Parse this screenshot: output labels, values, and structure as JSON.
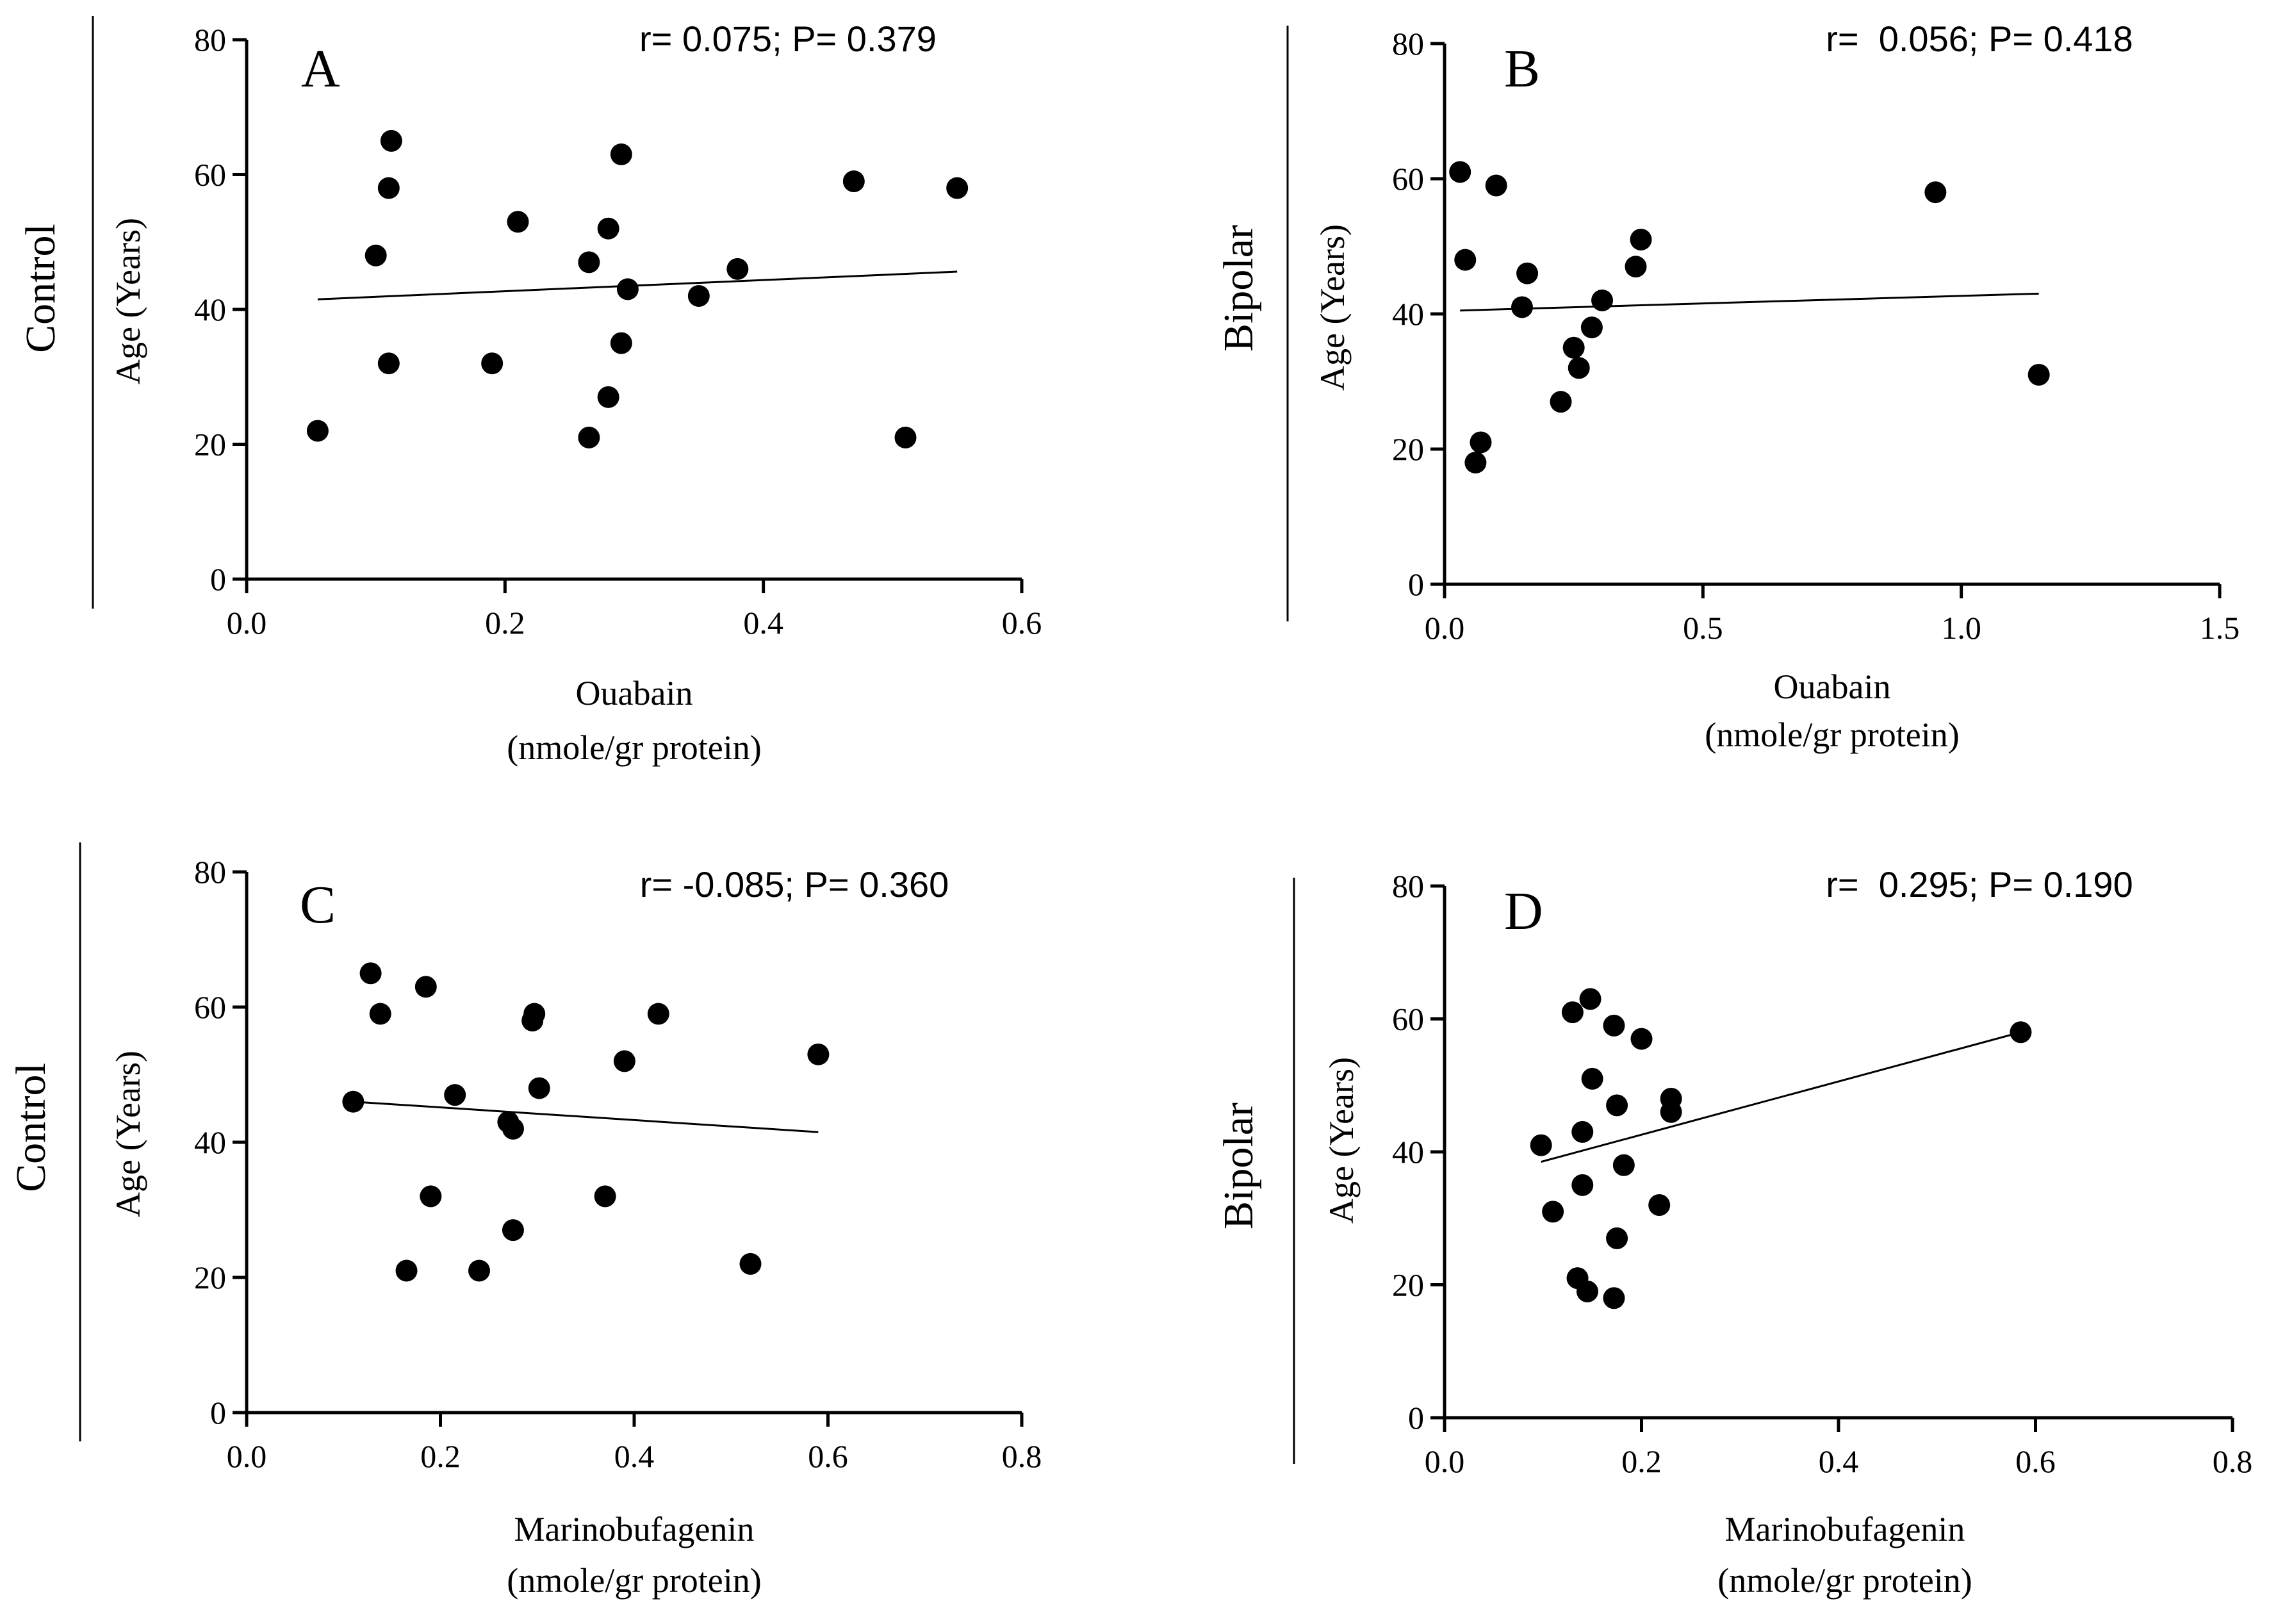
{
  "chart_data": [
    {
      "type": "scatter",
      "panel": "A",
      "group": "Control",
      "stat": "r= 0.075; P= 0.379",
      "xlabel": [
        "Ouabain",
        "(nmole/gr protein)"
      ],
      "ylabel": "Age (Years)",
      "xlim": [
        0,
        0.6
      ],
      "ylim": [
        0,
        80
      ],
      "xticks": [
        "0.0",
        "0.2",
        "0.4",
        "0.6"
      ],
      "xtick_values": [
        0,
        0.2,
        0.4,
        0.6
      ],
      "yticks": [
        "0",
        "20",
        "40",
        "60",
        "80"
      ],
      "ytick_values": [
        0,
        20,
        40,
        60,
        80
      ],
      "points": [
        [
          0.055,
          22
        ],
        [
          0.1,
          48
        ],
        [
          0.11,
          58
        ],
        [
          0.112,
          65
        ],
        [
          0.11,
          32
        ],
        [
          0.19,
          32
        ],
        [
          0.21,
          53
        ],
        [
          0.265,
          47
        ],
        [
          0.265,
          21
        ],
        [
          0.28,
          52
        ],
        [
          0.28,
          27
        ],
        [
          0.29,
          63
        ],
        [
          0.295,
          43
        ],
        [
          0.29,
          35
        ],
        [
          0.35,
          42
        ],
        [
          0.38,
          46
        ],
        [
          0.47,
          59
        ],
        [
          0.51,
          21
        ],
        [
          0.55,
          58
        ]
      ],
      "fit": [
        [
          0.055,
          41.5
        ],
        [
          0.55,
          45.6
        ]
      ]
    },
    {
      "type": "scatter",
      "panel": "B",
      "group": "Bipolar",
      "stat": "r=  0.056; P= 0.418",
      "xlabel": [
        "Ouabain",
        "(nmole/gr protein)"
      ],
      "ylabel": "Age (Years)",
      "xlim": [
        0,
        1.5
      ],
      "ylim": [
        0,
        80
      ],
      "xticks": [
        "0.0",
        "0.5",
        "1.0",
        "1.5"
      ],
      "xtick_values": [
        0,
        0.5,
        1.0,
        1.5
      ],
      "yticks": [
        "0",
        "20",
        "40",
        "60",
        "80"
      ],
      "ytick_values": [
        0,
        20,
        40,
        60,
        80
      ],
      "points": [
        [
          0.03,
          61
        ],
        [
          0.04,
          48
        ],
        [
          0.06,
          18
        ],
        [
          0.07,
          21
        ],
        [
          0.1,
          59
        ],
        [
          0.15,
          41
        ],
        [
          0.16,
          46
        ],
        [
          0.225,
          27
        ],
        [
          0.25,
          35
        ],
        [
          0.26,
          32
        ],
        [
          0.285,
          38
        ],
        [
          0.305,
          42
        ],
        [
          0.37,
          47
        ],
        [
          0.38,
          51
        ],
        [
          0.95,
          58
        ],
        [
          1.15,
          31
        ]
      ],
      "fit": [
        [
          0.03,
          40.5
        ],
        [
          1.15,
          43
        ]
      ]
    },
    {
      "type": "scatter",
      "panel": "C",
      "group": "Control",
      "stat": "r= -0.085; P= 0.360",
      "xlabel": [
        "Marinobufagenin",
        "(nmole/gr protein)"
      ],
      "ylabel": "Age (Years)",
      "xlim": [
        0,
        0.8
      ],
      "ylim": [
        0,
        80
      ],
      "xticks": [
        "0.0",
        "0.2",
        "0.4",
        "0.6",
        "0.8"
      ],
      "xtick_values": [
        0,
        0.2,
        0.4,
        0.6,
        0.8
      ],
      "yticks": [
        "0",
        "20",
        "40",
        "60",
        "80"
      ],
      "ytick_values": [
        0,
        20,
        40,
        60,
        80
      ],
      "points": [
        [
          0.11,
          46
        ],
        [
          0.128,
          65
        ],
        [
          0.138,
          59
        ],
        [
          0.165,
          21
        ],
        [
          0.185,
          63
        ],
        [
          0.19,
          32
        ],
        [
          0.215,
          47
        ],
        [
          0.24,
          21
        ],
        [
          0.27,
          43
        ],
        [
          0.275,
          42
        ],
        [
          0.275,
          27
        ],
        [
          0.295,
          58
        ],
        [
          0.297,
          59
        ],
        [
          0.302,
          48
        ],
        [
          0.37,
          32
        ],
        [
          0.39,
          52
        ],
        [
          0.425,
          59
        ],
        [
          0.52,
          22
        ],
        [
          0.59,
          53
        ]
      ],
      "fit": [
        [
          0.11,
          46
        ],
        [
          0.59,
          41.5
        ]
      ]
    },
    {
      "type": "scatter",
      "panel": "D",
      "group": "Bipolar",
      "stat": "r=  0.295; P= 0.190",
      "xlabel": [
        "Marinobufagenin",
        "(nmole/gr protein)"
      ],
      "ylabel": "Age (Years)",
      "xlim": [
        0,
        0.8
      ],
      "ylim": [
        0,
        80
      ],
      "xticks": [
        "0.0",
        "0.2",
        "0.4",
        "0.6",
        "0.8"
      ],
      "xtick_values": [
        0,
        0.2,
        0.4,
        0.6,
        0.8
      ],
      "yticks": [
        "0",
        "20",
        "40",
        "60",
        "80"
      ],
      "ytick_values": [
        0,
        20,
        40,
        60,
        80
      ],
      "points": [
        [
          0.098,
          41
        ],
        [
          0.11,
          31
        ],
        [
          0.13,
          61
        ],
        [
          0.135,
          21
        ],
        [
          0.14,
          43
        ],
        [
          0.14,
          35
        ],
        [
          0.145,
          19
        ],
        [
          0.148,
          63
        ],
        [
          0.15,
          51
        ],
        [
          0.172,
          59
        ],
        [
          0.175,
          47
        ],
        [
          0.175,
          27
        ],
        [
          0.172,
          18
        ],
        [
          0.182,
          38
        ],
        [
          0.2,
          57
        ],
        [
          0.218,
          32
        ],
        [
          0.23,
          48
        ],
        [
          0.23,
          46
        ],
        [
          0.585,
          58
        ]
      ],
      "fit": [
        [
          0.098,
          38.5
        ],
        [
          0.585,
          58
        ]
      ]
    }
  ]
}
